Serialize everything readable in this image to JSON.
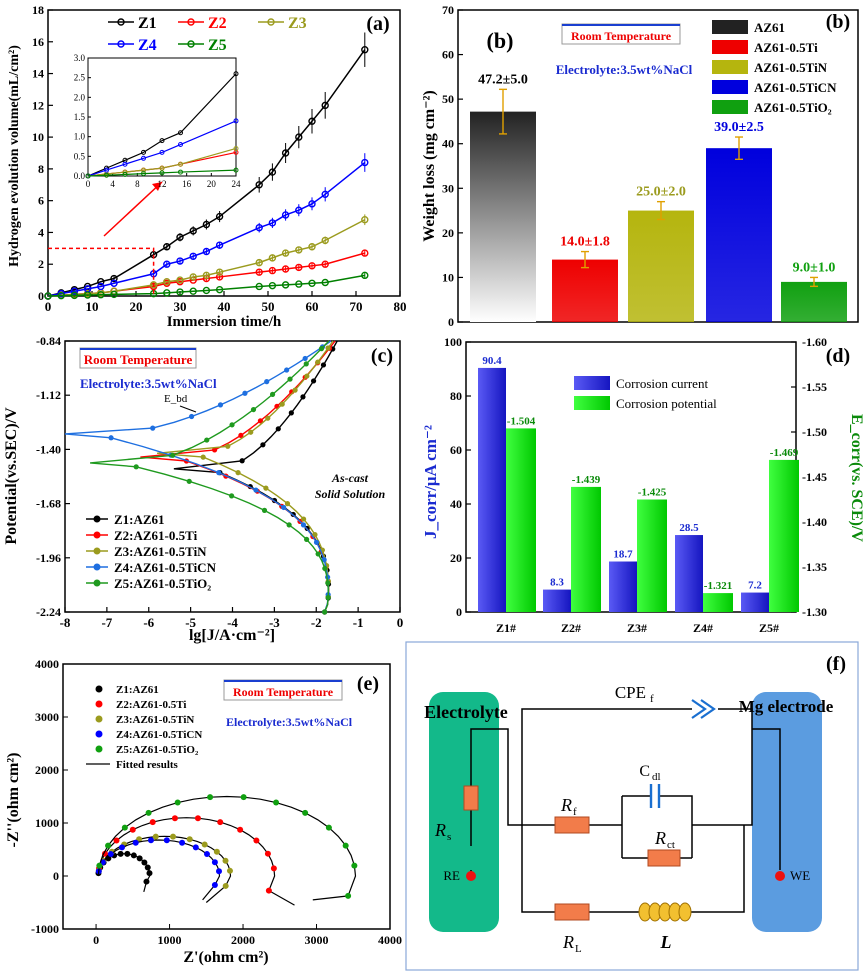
{
  "chart_data": [
    {
      "panel": "(a)",
      "type": "line",
      "xlabel": "Immersion time/h",
      "ylabel": "Hydrogen evolution volume(mL/cm²)",
      "xlim": [
        0,
        80
      ],
      "ylim": [
        0,
        18
      ],
      "xticks": [
        "0",
        "10",
        "20",
        "30",
        "40",
        "50",
        "60",
        "70",
        "80"
      ],
      "yticks": [
        "0",
        "2",
        "4",
        "6",
        "8",
        "10",
        "12",
        "14",
        "16",
        "18"
      ],
      "x": [
        0,
        3,
        6,
        9,
        12,
        15,
        24,
        27,
        30,
        33,
        36,
        39,
        48,
        51,
        54,
        57,
        60,
        63,
        72
      ],
      "series": [
        {
          "name": "Z1",
          "color": "#000000",
          "values": [
            0,
            0.2,
            0.4,
            0.6,
            0.9,
            1.1,
            2.6,
            3.1,
            3.7,
            4.1,
            4.5,
            5.0,
            7.0,
            7.8,
            9.0,
            10.0,
            11.0,
            12.0,
            15.5
          ]
        },
        {
          "name": "Z2",
          "color": "#ff0000",
          "values": [
            0,
            0.05,
            0.1,
            0.15,
            0.2,
            0.3,
            0.6,
            0.8,
            0.9,
            1.0,
            1.1,
            1.2,
            1.5,
            1.6,
            1.7,
            1.8,
            1.9,
            2.0,
            2.7
          ]
        },
        {
          "name": "Z3",
          "color": "#9b9b1e",
          "values": [
            0,
            0.05,
            0.1,
            0.15,
            0.2,
            0.3,
            0.7,
            0.9,
            1.0,
            1.2,
            1.3,
            1.5,
            2.1,
            2.4,
            2.7,
            2.9,
            3.1,
            3.5,
            4.8
          ]
        },
        {
          "name": "Z4",
          "color": "#0000ff",
          "values": [
            0,
            0.15,
            0.3,
            0.45,
            0.6,
            0.8,
            1.4,
            2.0,
            2.2,
            2.5,
            2.8,
            3.2,
            4.3,
            4.6,
            5.1,
            5.4,
            5.8,
            6.4,
            8.4
          ]
        },
        {
          "name": "Z5",
          "color": "#008000",
          "values": [
            0,
            0.02,
            0.04,
            0.06,
            0.08,
            0.1,
            0.15,
            0.2,
            0.25,
            0.3,
            0.35,
            0.4,
            0.6,
            0.65,
            0.7,
            0.75,
            0.8,
            0.85,
            1.3
          ]
        }
      ],
      "inset": {
        "xlim": [
          0,
          24
        ],
        "ylim": [
          0,
          3.0
        ],
        "xticks": [
          "0",
          "4",
          "8",
          "12",
          "16",
          "20",
          "24"
        ],
        "yticks": [
          "0.0",
          "0.5",
          "1.0",
          "1.5",
          "2.0",
          "2.5",
          "3.0"
        ]
      }
    },
    {
      "panel": "(b)",
      "type": "bar",
      "ylabel": "Weight loss (mg cm⁻²)",
      "ylim": [
        0,
        70
      ],
      "yticks": [
        "0",
        "10",
        "20",
        "30",
        "40",
        "50",
        "60",
        "70"
      ],
      "categories": [
        "AZ61",
        "AZ61-0.5Ti",
        "AZ61-0.5TiN",
        "AZ61-0.5TiCN",
        "AZ61-0.5TiO₂"
      ],
      "values": [
        47.2,
        14.0,
        25.0,
        39.0,
        9.0
      ],
      "errors": [
        5.0,
        1.8,
        2.0,
        2.5,
        1.0
      ],
      "labels": [
        "47.2±5.0",
        "14.0±1.8",
        "25.0±2.0",
        "39.0±2.5",
        "9.0±1.0"
      ],
      "colors": [
        "#222222",
        "#ee0000",
        "#b5b50e",
        "#0000dd",
        "#10a010"
      ],
      "label_colors": [
        "#000000",
        "#ee0000",
        "#9b9b1e",
        "#0000dd",
        "#10a010"
      ],
      "annotation": "Room Temperature",
      "electrolyte": "Electrolyte:3.5wt%NaCl"
    },
    {
      "panel": "(c)",
      "type": "line",
      "xlabel": "lg[J/A·cm⁻²]",
      "ylabel": "Potential(vs.SEC)/V",
      "xlim": [
        -8,
        0
      ],
      "ylim": [
        -2.24,
        -0.84
      ],
      "xticks": [
        "-8",
        "-7",
        "-6",
        "-5",
        "-4",
        "-3",
        "-2",
        "-1",
        "0"
      ],
      "yticks": [
        "-0.84",
        "-1.12",
        "-1.40",
        "-1.68",
        "-1.96",
        "-2.24"
      ],
      "legend": [
        "Z1:AZ61",
        "Z2:AZ61-0.5Ti",
        "Z3:AZ61-0.5TiN",
        "Z4:AZ61-0.5TiCN",
        "Z5:AZ61-0.5TiO₂"
      ],
      "colors": [
        "#000000",
        "#ff0000",
        "#9b9b1e",
        "#1e6fe0",
        "#1f9a1f"
      ],
      "annotations": [
        "Room Temperature",
        "Electrolyte:3.5wt%NaCl",
        "E_bd",
        "As-cast",
        "Solid Solution"
      ]
    },
    {
      "panel": "(d)",
      "type": "bar",
      "categories": [
        "Z1#",
        "Z2#",
        "Z3#",
        "Z4#",
        "Z5#"
      ],
      "series": [
        {
          "name": "Corrosion current",
          "values": [
            90.4,
            8.3,
            18.7,
            28.5,
            7.2
          ],
          "color": "#2a2ae8"
        },
        {
          "name": "Corrosion potential",
          "values": [
            -1.504,
            -1.439,
            -1.425,
            -1.321,
            -1.469
          ],
          "color": "#00e000"
        }
      ],
      "ylabel_left": "J_corr/μA cm⁻²",
      "ylabel_right": "E_corr(vs. SCE)/V",
      "ylim_left": [
        0,
        100
      ],
      "ylim_right": [
        -1.3,
        -1.6
      ],
      "yticks_left": [
        "0",
        "20",
        "40",
        "60",
        "80",
        "100"
      ],
      "yticks_right": [
        "-1.30",
        "-1.35",
        "-1.40",
        "-1.45",
        "-1.50",
        "-1.55",
        "-1.60"
      ],
      "labels_left": [
        "90.4",
        "8.3",
        "18.7",
        "28.5",
        "7.2"
      ],
      "labels_right": [
        "-1.504",
        "-1.439",
        "-1.425",
        "-1.321",
        "-1.469"
      ]
    },
    {
      "panel": "(e)",
      "type": "scatter",
      "xlabel": "Z'(ohm cm²)",
      "ylabel": "-Z''(ohm cm²)",
      "xlim": [
        -500,
        4000
      ],
      "ylim": [
        -1000,
        4000
      ],
      "xticks": [
        "0",
        "1000",
        "2000",
        "3000",
        "4000"
      ],
      "yticks": [
        "-1000",
        "0",
        "1000",
        "2000",
        "3000",
        "4000"
      ],
      "legend": [
        "Z1:AZ61",
        "Z2:AZ61-0.5Ti",
        "Z3:AZ61-0.5TiN",
        "Z4:AZ61-0.5TiCN",
        "Z5:AZ61-0.5TiO₂",
        "Fitted results"
      ],
      "colors": [
        "#000000",
        "#ff0000",
        "#9b9b1e",
        "#0000ff",
        "#10a010",
        "#000000"
      ],
      "annotations": [
        "Room Temperature",
        "Electrolyte:3.5wt%NaCl"
      ]
    },
    {
      "panel": "(f)",
      "type": "diagram",
      "labels": {
        "electrolyte": "Electrolyte",
        "mg_electrode": "Mg electrode",
        "cpe": "CPE",
        "cpe_sub": "f",
        "cdl": "C",
        "cdl_sub": "dl",
        "rs": "R",
        "rs_sub": "s",
        "rf": "R",
        "rf_sub": "f",
        "rct": "R",
        "rct_sub": "ct",
        "rl": "R",
        "rl_sub": "L",
        "l": "L",
        "re": "RE",
        "we": "WE"
      }
    }
  ]
}
